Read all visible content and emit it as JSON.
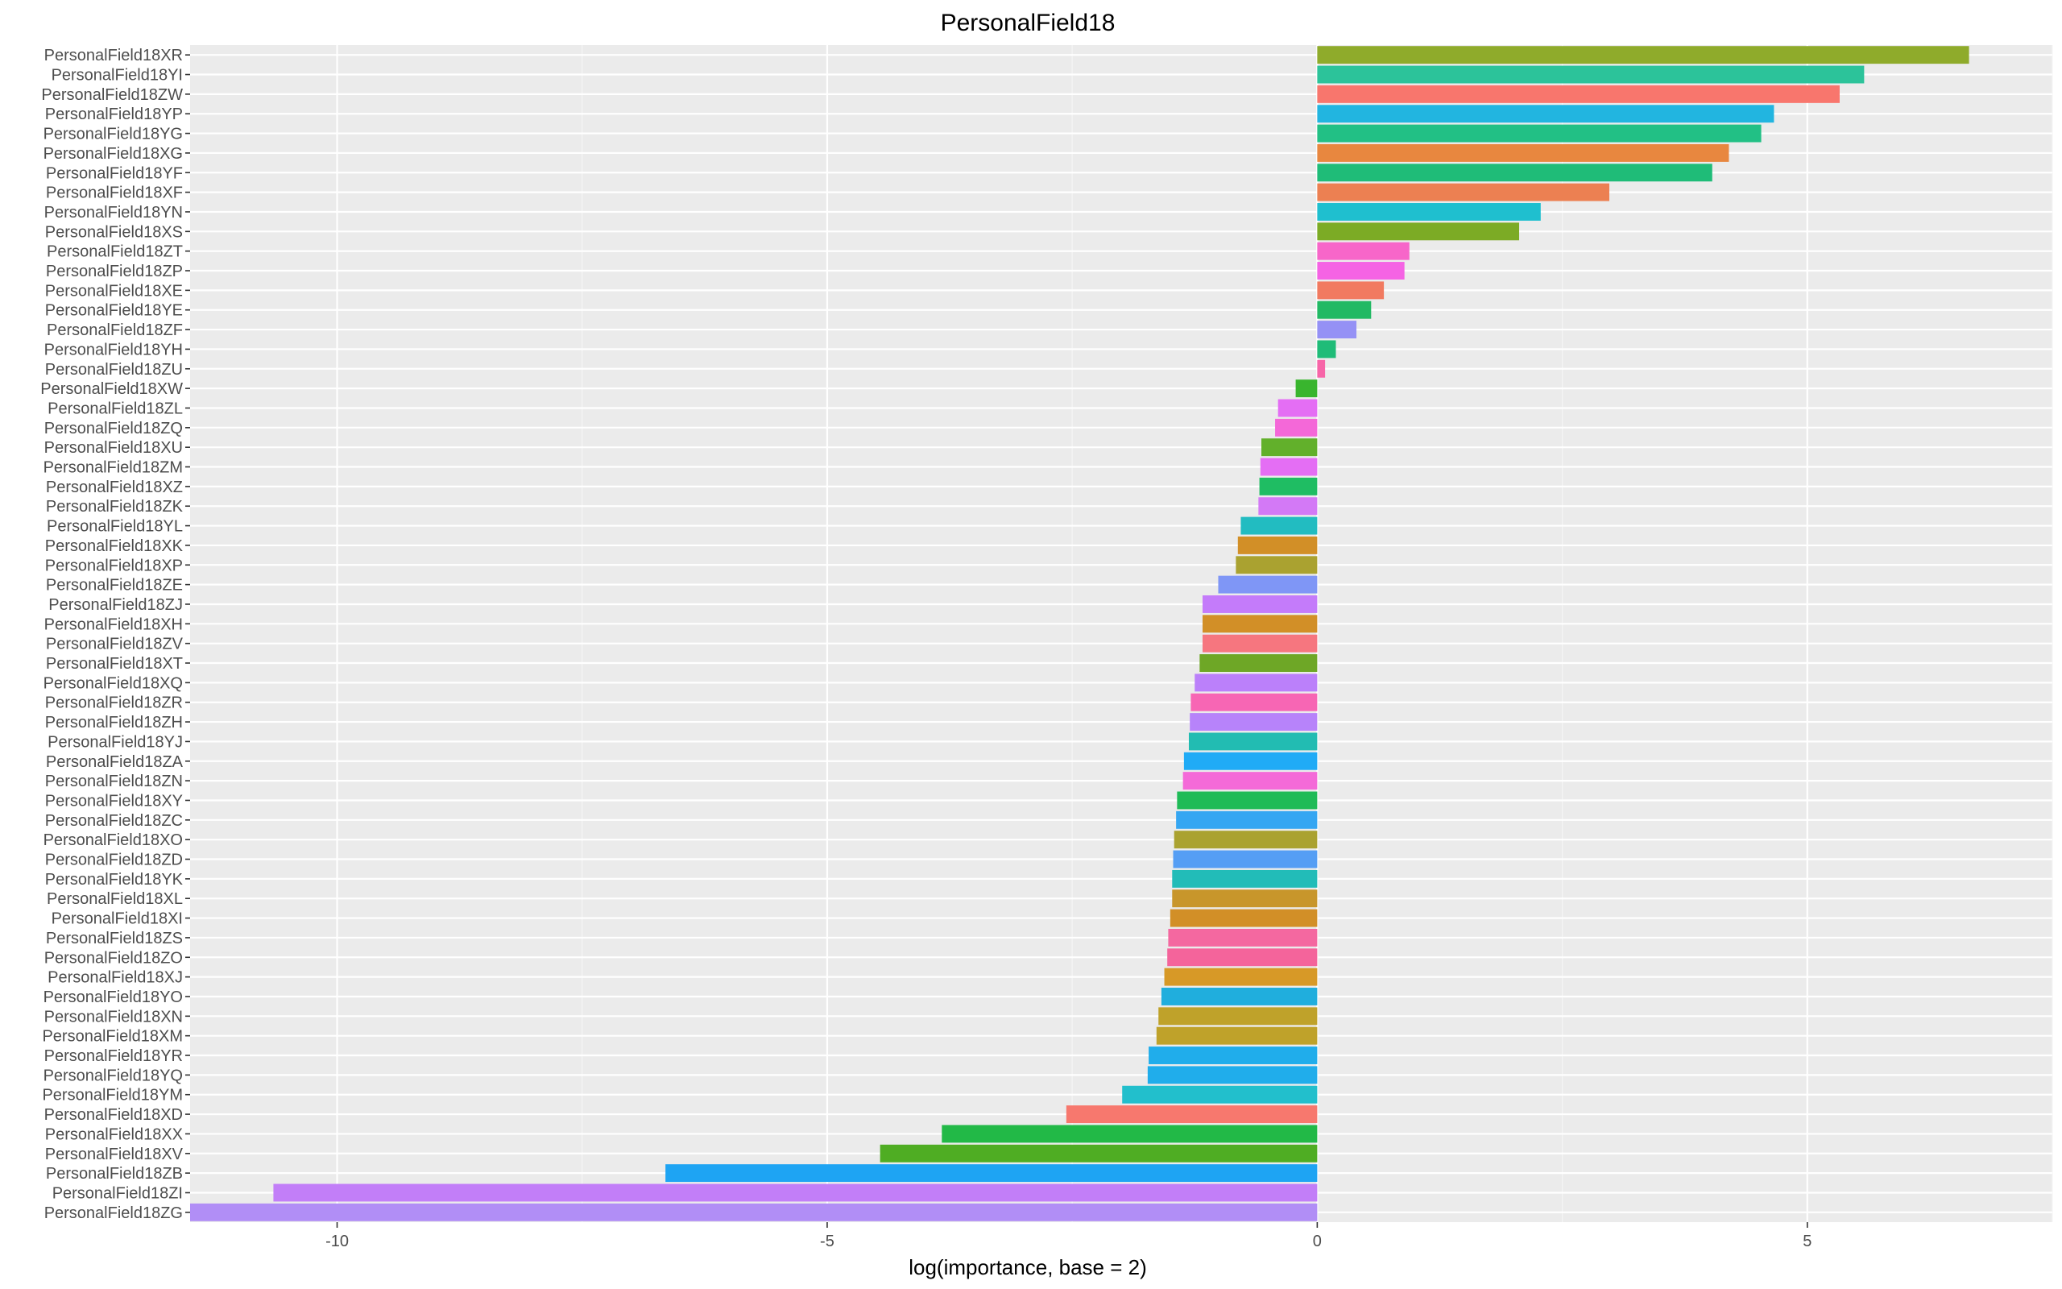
{
  "chart_data": {
    "type": "bar",
    "orientation": "horizontal",
    "title": "PersonalField18",
    "xlabel": "log(importance, base = 2)",
    "ylabel": "",
    "xlim": [
      -11.5,
      7.5
    ],
    "xticks": [
      -10,
      -5,
      0,
      5
    ],
    "grid": true,
    "legend": "none",
    "categories": [
      "PersonalField18XR",
      "PersonalField18YI",
      "PersonalField18ZW",
      "PersonalField18YP",
      "PersonalField18YG",
      "PersonalField18XG",
      "PersonalField18YF",
      "PersonalField18XF",
      "PersonalField18YN",
      "PersonalField18XS",
      "PersonalField18ZT",
      "PersonalField18ZP",
      "PersonalField18XE",
      "PersonalField18YE",
      "PersonalField18ZF",
      "PersonalField18YH",
      "PersonalField18ZU",
      "PersonalField18XW",
      "PersonalField18ZL",
      "PersonalField18ZQ",
      "PersonalField18XU",
      "PersonalField18ZM",
      "PersonalField18XZ",
      "PersonalField18ZK",
      "PersonalField18YL",
      "PersonalField18XK",
      "PersonalField18XP",
      "PersonalField18ZE",
      "PersonalField18ZJ",
      "PersonalField18XH",
      "PersonalField18ZV",
      "PersonalField18XT",
      "PersonalField18XQ",
      "PersonalField18ZR",
      "PersonalField18ZH",
      "PersonalField18YJ",
      "PersonalField18ZA",
      "PersonalField18ZN",
      "PersonalField18XY",
      "PersonalField18ZC",
      "PersonalField18XO",
      "PersonalField18ZD",
      "PersonalField18YK",
      "PersonalField18XL",
      "PersonalField18XI",
      "PersonalField18ZS",
      "PersonalField18ZO",
      "PersonalField18XJ",
      "PersonalField18YO",
      "PersonalField18XN",
      "PersonalField18XM",
      "PersonalField18YR",
      "PersonalField18YQ",
      "PersonalField18YM",
      "PersonalField18XD",
      "PersonalField18XX",
      "PersonalField18XV",
      "PersonalField18ZB",
      "PersonalField18ZI",
      "PersonalField18ZG"
    ],
    "values": [
      6.65,
      5.58,
      5.33,
      4.66,
      4.53,
      4.2,
      4.03,
      2.98,
      2.28,
      2.06,
      0.94,
      0.89,
      0.68,
      0.55,
      0.4,
      0.19,
      0.08,
      -0.22,
      -0.4,
      -0.43,
      -0.57,
      -0.58,
      -0.59,
      -0.6,
      -0.78,
      -0.81,
      -0.83,
      -1.01,
      -1.17,
      -1.17,
      -1.17,
      -1.2,
      -1.25,
      -1.29,
      -1.3,
      -1.31,
      -1.36,
      -1.37,
      -1.43,
      -1.44,
      -1.46,
      -1.47,
      -1.48,
      -1.48,
      -1.5,
      -1.52,
      -1.53,
      -1.56,
      -1.59,
      -1.62,
      -1.64,
      -1.72,
      -1.73,
      -1.99,
      -2.56,
      -3.83,
      -4.46,
      -6.65,
      -10.65,
      -11.5
    ],
    "colors": [
      "#8fab2b",
      "#2cc39a",
      "#f8766d",
      "#22b5e0",
      "#22c085",
      "#e8873f",
      "#1fbc78",
      "#ec8052",
      "#1fbfcf",
      "#7cab25",
      "#f766c9",
      "#f563e4",
      "#f17a60",
      "#22b964",
      "#9591f5",
      "#1fbc78",
      "#f765a8",
      "#39b52e",
      "#e46ef4",
      "#f468d8",
      "#62b02b",
      "#e46ef4",
      "#1fbd63",
      "#d379f6",
      "#22bcc1",
      "#d28f27",
      "#aaa230",
      "#7f96f6",
      "#c47bfa",
      "#d28f27",
      "#f6767f",
      "#6ea726",
      "#bb80fa",
      "#f766b4",
      "#b783fa",
      "#22bcb2",
      "#20abf6",
      "#f46ad8",
      "#1fbb57",
      "#35a6f2",
      "#aaa230",
      "#559ef4",
      "#22bcb8",
      "#c8962b",
      "#d28f27",
      "#f468a0",
      "#f4649b",
      "#d79927",
      "#20aedd",
      "#bfa22a",
      "#bfa22a",
      "#20adeb",
      "#20adeb",
      "#22bfcc",
      "#f7786e",
      "#22b947",
      "#4fad23",
      "#1ea4f3",
      "#c27ef8",
      "#b18ef6"
    ]
  }
}
